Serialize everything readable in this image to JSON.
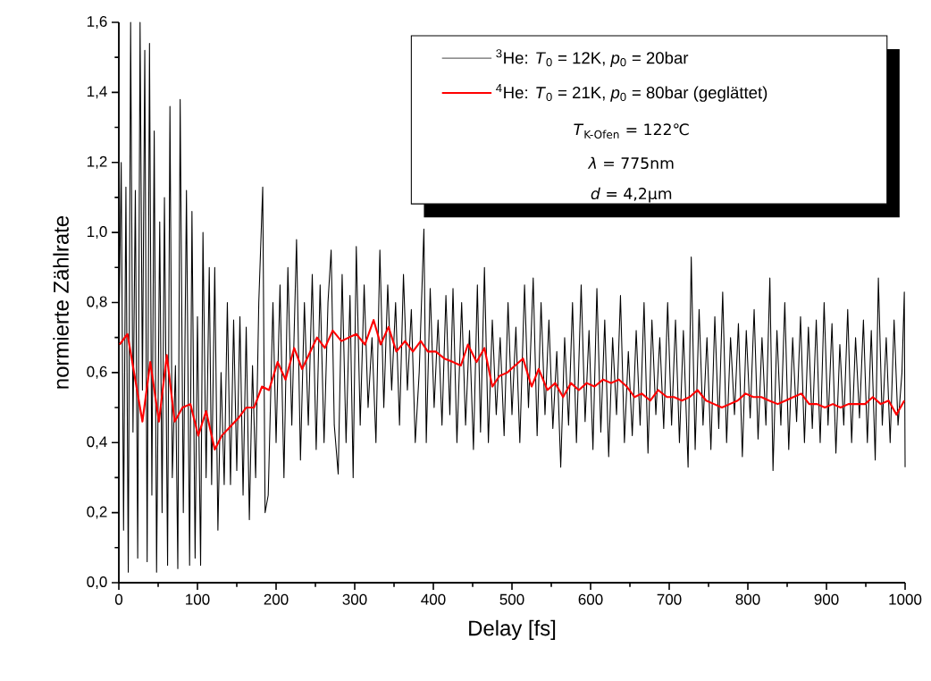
{
  "chart_data": {
    "type": "line",
    "xlabel": "Delay [fs]",
    "ylabel": "normierte Zählrate",
    "xlim": [
      0,
      1000
    ],
    "ylim": [
      0,
      1.6
    ],
    "xticks": [
      0,
      100,
      200,
      300,
      400,
      500,
      600,
      700,
      800,
      900,
      1000
    ],
    "yticks": [
      {
        "value": 0,
        "label": "0,0"
      },
      {
        "value": 0.2,
        "label": "0,2"
      },
      {
        "value": 0.4,
        "label": "0,4"
      },
      {
        "value": 0.6,
        "label": "0,6"
      },
      {
        "value": 0.8,
        "label": "0,8"
      },
      {
        "value": 1.0,
        "label": "1,0"
      },
      {
        "value": 1.2,
        "label": "1,2"
      },
      {
        "value": 1.4,
        "label": "1,4"
      },
      {
        "value": 1.6,
        "label": "1,6"
      }
    ],
    "grid": false,
    "legend": "top right",
    "marker": "none",
    "line_style": "solid",
    "annotations": [
      "*T*$_{K-Ofen}$ = 122℃",
      "*λ* = 775nm",
      "*d* = 4,2µm"
    ],
    "series": [
      {
        "name": "$^{3}$He:  *T*$_{0}$ = 12K,  *p*$_{0}$ = 20bar",
        "color": "#000000",
        "x": [
          0,
          3,
          6,
          9,
          12,
          15,
          18,
          21,
          24,
          27,
          30,
          33,
          36,
          39,
          42,
          45,
          48,
          52,
          55,
          58,
          62,
          65,
          68,
          72,
          75,
          78,
          82,
          86,
          90,
          93,
          97,
          100,
          104,
          107,
          111,
          115,
          118,
          122,
          126,
          130,
          134,
          138,
          142,
          146,
          150,
          154,
          158,
          162,
          166,
          170,
          174,
          178,
          183,
          186,
          190,
          196,
          200,
          205,
          210,
          215,
          220,
          226,
          231,
          236,
          241,
          246,
          251,
          256,
          261,
          266,
          270,
          274,
          279,
          284,
          289,
          294,
          298,
          302,
          307,
          312,
          317,
          322,
          327,
          332,
          337,
          342,
          347,
          352,
          357,
          362,
          367,
          372,
          377,
          382,
          388,
          391,
          396,
          401,
          406,
          411,
          416,
          421,
          425,
          430,
          436,
          441,
          446,
          451,
          456,
          460,
          465,
          470,
          475,
          480,
          485,
          490,
          495,
          500,
          505,
          510,
          516,
          521,
          527,
          532,
          537,
          542,
          547,
          552,
          557,
          562,
          567,
          572,
          577,
          582,
          588,
          593,
          598,
          603,
          608,
          613,
          618,
          623,
          628,
          633,
          638,
          643,
          648,
          653,
          658,
          663,
          668,
          673,
          678,
          683,
          688,
          693,
          698,
          703,
          708,
          713,
          718,
          724,
          728,
          733,
          738,
          743,
          748,
          753,
          758,
          763,
          768,
          773,
          778,
          783,
          788,
          793,
          798,
          803,
          808,
          813,
          818,
          823,
          828,
          832,
          837,
          842,
          847,
          852,
          857,
          862,
          867,
          872,
          877,
          882,
          887,
          892,
          897,
          902,
          907,
          912,
          917,
          922,
          927,
          932,
          937,
          942,
          947,
          952,
          957,
          962,
          966,
          971,
          976,
          981,
          986,
          991,
          996,
          999,
          1000
        ],
        "values": [
          0.68,
          1.2,
          0.15,
          1.13,
          0.03,
          1.6,
          0.43,
          1.12,
          0.07,
          1.6,
          0.55,
          1.52,
          0.06,
          1.54,
          0.25,
          1.29,
          0.03,
          1.03,
          0.2,
          1.1,
          0.05,
          1.36,
          0.3,
          0.62,
          0.04,
          1.38,
          0.2,
          1.12,
          0.05,
          1.06,
          0.07,
          0.76,
          0.05,
          1.0,
          0.3,
          0.9,
          0.28,
          0.9,
          0.15,
          0.6,
          0.28,
          0.8,
          0.28,
          0.75,
          0.32,
          0.76,
          0.25,
          0.73,
          0.18,
          0.62,
          0.3,
          0.8,
          1.13,
          0.2,
          0.25,
          0.8,
          0.4,
          0.85,
          0.3,
          0.9,
          0.45,
          0.98,
          0.35,
          0.8,
          0.45,
          0.88,
          0.38,
          0.85,
          0.4,
          0.8,
          0.95,
          0.45,
          0.31,
          0.88,
          0.4,
          0.82,
          0.3,
          0.96,
          0.45,
          0.85,
          0.5,
          0.7,
          0.4,
          0.95,
          0.5,
          0.85,
          0.55,
          0.8,
          0.45,
          0.88,
          0.55,
          0.78,
          0.4,
          0.6,
          1.01,
          0.4,
          0.84,
          0.5,
          0.75,
          0.45,
          0.82,
          0.48,
          0.84,
          0.4,
          0.8,
          0.45,
          0.72,
          0.38,
          0.85,
          0.43,
          0.9,
          0.4,
          0.75,
          0.48,
          0.7,
          0.42,
          0.8,
          0.48,
          0.73,
          0.4,
          0.85,
          0.5,
          0.87,
          0.42,
          0.8,
          0.48,
          0.75,
          0.44,
          0.66,
          0.33,
          0.7,
          0.45,
          0.8,
          0.4,
          0.85,
          0.46,
          0.72,
          0.38,
          0.84,
          0.43,
          0.75,
          0.36,
          0.7,
          0.48,
          0.82,
          0.4,
          0.66,
          0.42,
          0.72,
          0.45,
          0.8,
          0.37,
          0.75,
          0.48,
          0.7,
          0.44,
          0.8,
          0.45,
          0.75,
          0.4,
          0.72,
          0.33,
          0.93,
          0.38,
          0.78,
          0.45,
          0.7,
          0.38,
          0.76,
          0.44,
          0.83,
          0.4,
          0.7,
          0.48,
          0.74,
          0.36,
          0.72,
          0.47,
          0.78,
          0.41,
          0.7,
          0.45,
          0.87,
          0.32,
          0.72,
          0.45,
          0.8,
          0.38,
          0.7,
          0.46,
          0.76,
          0.4,
          0.73,
          0.44,
          0.75,
          0.4,
          0.8,
          0.45,
          0.74,
          0.37,
          0.68,
          0.45,
          0.78,
          0.4,
          0.7,
          0.47,
          0.75,
          0.4,
          0.72,
          0.35,
          0.87,
          0.45,
          0.7,
          0.4,
          0.75,
          0.45,
          0.6,
          0.83,
          0.33
        ]
      },
      {
        "name": "$^{4}$He:  *T*$_{0}$ = 21K,  *p*$_{0}$ = 80bar (geglättet)",
        "color": "#ff0000",
        "x": [
          1,
          11,
          30,
          40,
          51,
          61,
          71,
          81,
          91,
          101,
          111,
          122,
          131,
          152,
          162,
          172,
          182,
          191,
          202,
          212,
          223,
          233,
          252,
          262,
          272,
          283,
          302,
          313,
          324,
          333,
          343,
          353,
          364,
          374,
          384,
          393,
          403,
          414,
          425,
          435,
          444,
          455,
          465,
          475,
          484,
          494,
          504,
          514,
          525,
          534,
          545,
          555,
          565,
          575,
          585,
          595,
          605,
          616,
          626,
          636,
          646,
          656,
          665,
          676,
          686,
          697,
          706,
          716,
          726,
          736,
          747,
          757,
          767,
          777,
          787,
          797,
          807,
          817,
          827,
          838,
          848,
          858,
          868,
          878,
          888,
          898,
          908,
          918,
          928,
          939,
          949,
          959,
          969,
          979,
          989,
          999
        ],
        "values": [
          0.68,
          0.71,
          0.46,
          0.63,
          0.46,
          0.65,
          0.46,
          0.5,
          0.51,
          0.42,
          0.49,
          0.38,
          0.42,
          0.47,
          0.5,
          0.5,
          0.56,
          0.55,
          0.63,
          0.58,
          0.67,
          0.61,
          0.7,
          0.67,
          0.72,
          0.69,
          0.71,
          0.68,
          0.75,
          0.68,
          0.73,
          0.66,
          0.69,
          0.66,
          0.69,
          0.66,
          0.66,
          0.64,
          0.63,
          0.62,
          0.68,
          0.63,
          0.67,
          0.56,
          0.59,
          0.6,
          0.62,
          0.64,
          0.56,
          0.61,
          0.55,
          0.57,
          0.53,
          0.57,
          0.55,
          0.57,
          0.56,
          0.58,
          0.57,
          0.58,
          0.56,
          0.53,
          0.54,
          0.52,
          0.55,
          0.53,
          0.53,
          0.52,
          0.53,
          0.55,
          0.52,
          0.51,
          0.5,
          0.51,
          0.52,
          0.54,
          0.53,
          0.53,
          0.52,
          0.51,
          0.52,
          0.53,
          0.54,
          0.51,
          0.51,
          0.5,
          0.51,
          0.5,
          0.51,
          0.51,
          0.51,
          0.53,
          0.51,
          0.52,
          0.48,
          0.52
        ]
      }
    ]
  }
}
